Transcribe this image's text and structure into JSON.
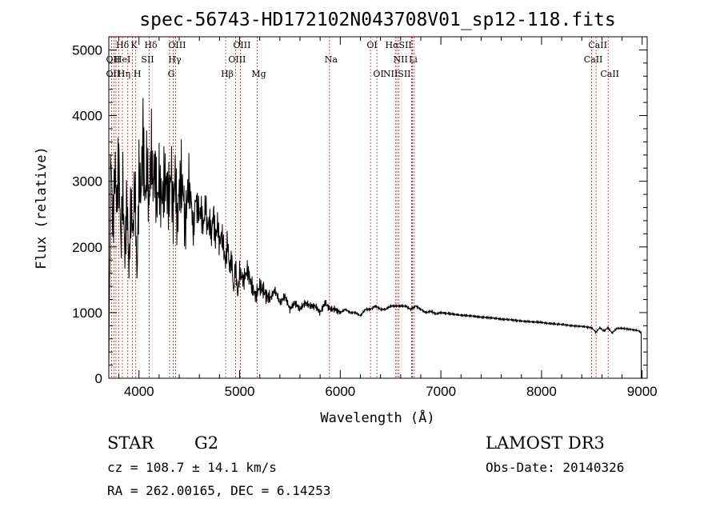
{
  "chart_data": {
    "type": "line",
    "title": "spec-56743-HD172102N043708V01_sp12-118.fits",
    "xlabel": "Wavelength (Å)",
    "ylabel": "Flux (relative)",
    "xlim": [
      3700,
      9050
    ],
    "ylim": [
      0,
      5200
    ],
    "xticks": [
      4000,
      5000,
      6000,
      7000,
      8000,
      9000
    ],
    "xtick_labels": [
      "4000",
      "5000",
      "6000",
      "7000",
      "8000",
      "9000"
    ],
    "yticks": [
      0,
      1000,
      2000,
      3000,
      4000,
      5000
    ],
    "ytick_labels": [
      "0",
      "1000",
      "2000",
      "3000",
      "4000",
      "5000"
    ],
    "series": [
      {
        "name": "spectrum",
        "x": [
          3700,
          3720,
          3740,
          3760,
          3780,
          3800,
          3820,
          3840,
          3860,
          3880,
          3900,
          3920,
          3940,
          3960,
          3980,
          4000,
          4020,
          4040,
          4060,
          4080,
          4100,
          4120,
          4140,
          4160,
          4180,
          4200,
          4220,
          4240,
          4260,
          4280,
          4300,
          4320,
          4340,
          4360,
          4380,
          4400,
          4420,
          4440,
          4460,
          4480,
          4500,
          4520,
          4540,
          4560,
          4580,
          4600,
          4620,
          4640,
          4660,
          4680,
          4700,
          4720,
          4740,
          4760,
          4780,
          4800,
          4820,
          4840,
          4860,
          4880,
          4900,
          4920,
          4940,
          4960,
          4980,
          5000,
          5040,
          5080,
          5120,
          5160,
          5200,
          5250,
          5300,
          5350,
          5400,
          5450,
          5500,
          5550,
          5600,
          5650,
          5700,
          5750,
          5800,
          5850,
          5900,
          5950,
          6000,
          6050,
          6100,
          6150,
          6200,
          6250,
          6300,
          6350,
          6400,
          6450,
          6500,
          6550,
          6600,
          6650,
          6700,
          6750,
          6800,
          6850,
          6900,
          6950,
          7000,
          7100,
          7200,
          7300,
          7400,
          7500,
          7600,
          7700,
          7800,
          7900,
          8000,
          8100,
          8200,
          8300,
          8400,
          8500,
          8540,
          8580,
          8620,
          8660,
          8700,
          8750,
          8800,
          8850,
          8900,
          8950,
          8990
        ],
        "y": [
          150,
          3550,
          2200,
          3250,
          2600,
          3350,
          2000,
          2900,
          1800,
          2800,
          1600,
          2700,
          2200,
          2950,
          1500,
          3050,
          2800,
          3750,
          2700,
          3300,
          2600,
          3500,
          2950,
          3250,
          2600,
          3050,
          2750,
          2800,
          3050,
          2900,
          2700,
          3200,
          2500,
          3150,
          2300,
          2900,
          3000,
          2850,
          2250,
          2800,
          2900,
          2700,
          2150,
          2750,
          2600,
          2500,
          2550,
          2300,
          2650,
          2300,
          2400,
          2150,
          2550,
          2100,
          2350,
          2050,
          2200,
          2000,
          1750,
          2100,
          1650,
          1850,
          1300,
          1750,
          1250,
          1600,
          1500,
          1650,
          1400,
          1250,
          1400,
          1300,
          1200,
          1350,
          1150,
          1250,
          1050,
          1150,
          1050,
          1150,
          1100,
          1100,
          1000,
          1150,
          1050,
          1050,
          1000,
          1050,
          1000,
          1000,
          950,
          1050,
          1050,
          1100,
          1050,
          1050,
          1100,
          1100,
          1100,
          1100,
          1050,
          1100,
          1050,
          1000,
          1020,
          980,
          1000,
          980,
          960,
          950,
          930,
          920,
          900,
          890,
          870,
          860,
          850,
          830,
          820,
          800,
          790,
          770,
          700,
          770,
          720,
          770,
          690,
          760,
          760,
          750,
          740,
          730,
          700
        ]
      }
    ],
    "spectral_lines": [
      {
        "label": "Hδ",
        "x": 3820,
        "row": 0
      },
      {
        "label": "K",
        "x": 3934,
        "row": 0
      },
      {
        "label": "Hδ",
        "x": 4102,
        "row": 0
      },
      {
        "label": "OIII",
        "x": 4363,
        "row": 0
      },
      {
        "label": "OIII",
        "x": 5007,
        "row": 0
      },
      {
        "label": "OI",
        "x": 6300,
        "row": 0
      },
      {
        "label": "HαSII",
        "x": 6563,
        "row": 0
      },
      {
        "label": "CaII",
        "x": 8542,
        "row": 0
      },
      {
        "label": "OII",
        "x": 3727,
        "row": 1
      },
      {
        "label": "HeI",
        "x": 3820,
        "row": 1
      },
      {
        "label": "SII",
        "x": 4070,
        "row": 1
      },
      {
        "label": "Hγ",
        "x": 4340,
        "row": 1
      },
      {
        "label": "OIII",
        "x": 4959,
        "row": 1
      },
      {
        "label": "Na",
        "x": 5893,
        "row": 1
      },
      {
        "label": "NII",
        "x": 6583,
        "row": 1
      },
      {
        "label": "Li",
        "x": 6708,
        "row": 1
      },
      {
        "label": "CaII",
        "x": 8498,
        "row": 1
      },
      {
        "label": "OII",
        "x": 3727,
        "row": 2
      },
      {
        "label": "Hη",
        "x": 3835,
        "row": 2
      },
      {
        "label": "H",
        "x": 3968,
        "row": 2
      },
      {
        "label": "G",
        "x": 4304,
        "row": 2
      },
      {
        "label": "Hβ",
        "x": 4861,
        "row": 2
      },
      {
        "label": "Mg",
        "x": 5175,
        "row": 2
      },
      {
        "label": "OI",
        "x": 6364,
        "row": 2
      },
      {
        "label": "NIISII",
        "x": 6548,
        "row": 2
      },
      {
        "label": "CaII",
        "x": 8662,
        "row": 2
      }
    ],
    "line_markers_x": [
      3727,
      3750,
      3771,
      3798,
      3835,
      3889,
      3934,
      3968,
      4102,
      4304,
      4340,
      4363,
      4861,
      4959,
      5007,
      5175,
      5893,
      6300,
      6364,
      6548,
      6563,
      6583,
      6708,
      6716,
      6731,
      8498,
      8542,
      8662
    ]
  },
  "info": {
    "object_class": "STAR",
    "subclass": "G2",
    "survey": "LAMOST DR3",
    "redshift_text": "cz = 108.7 ± 14.1 km/s",
    "obs_date_text": "Obs-Date: 20140326",
    "coords_text": "RA = 262.00165, DEC =   6.14253"
  }
}
